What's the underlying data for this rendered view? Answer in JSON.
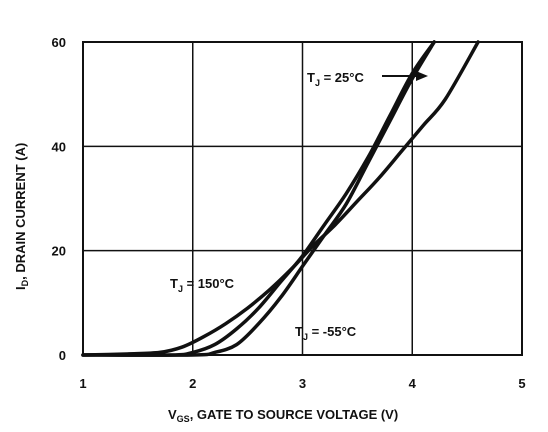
{
  "chart_data": {
    "type": "line",
    "xlabel": {
      "main": "V",
      "sub": "GS",
      "rest": ", GATE TO SOURCE VOLTAGE (V)"
    },
    "ylabel": {
      "main": "I",
      "sub": "D",
      "rest": ", DRAIN CURRENT (A)"
    },
    "xlim": [
      1,
      5
    ],
    "ylim": [
      0,
      60
    ],
    "xticks": [
      1,
      2,
      3,
      4,
      5
    ],
    "yticks": [
      0,
      20,
      40,
      60
    ],
    "grid": true,
    "series": [
      {
        "name": "T_J = 25°C",
        "label": {
          "pre": "T",
          "sub": "J",
          "post": " = 25°C"
        },
        "x": [
          1.0,
          1.8,
          2.0,
          2.2,
          2.4,
          2.6,
          2.8,
          3.0,
          3.2,
          3.4,
          3.6,
          3.8,
          4.0,
          4.2
        ],
        "y": [
          0,
          0,
          0.5,
          2,
          5,
          9,
          14,
          19,
          25,
          31,
          38,
          46,
          54,
          60
        ]
      },
      {
        "name": "T_J = 150°C",
        "label": {
          "pre": "T",
          "sub": "J",
          "post": " = 150°C"
        },
        "x": [
          1.0,
          1.4,
          1.7,
          1.9,
          2.1,
          2.3,
          2.5,
          2.7,
          2.9,
          3.1,
          3.3,
          3.5,
          3.7,
          3.9,
          4.1,
          4.3,
          4.6
        ],
        "y": [
          0,
          0.2,
          0.5,
          1.5,
          3.5,
          6,
          9,
          12.5,
          16.5,
          21,
          25,
          29.5,
          34,
          39,
          44,
          49,
          60
        ]
      },
      {
        "name": "T_J = -55°C",
        "label": {
          "pre": "T",
          "sub": "J",
          "post": " = -55°C"
        },
        "x": [
          1.0,
          2.0,
          2.2,
          2.4,
          2.6,
          2.8,
          3.0,
          3.2,
          3.4,
          3.6,
          3.8,
          4.0,
          4.2
        ],
        "y": [
          0,
          0,
          0.5,
          2,
          6,
          11,
          17,
          23,
          29,
          37,
          45,
          53,
          60
        ]
      }
    ]
  }
}
